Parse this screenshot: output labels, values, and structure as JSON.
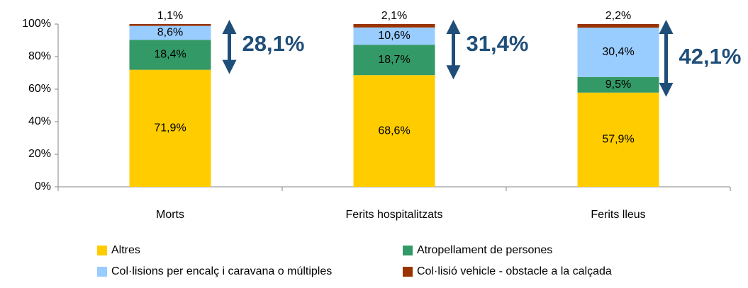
{
  "chart_data": {
    "type": "stacked_bar",
    "categories": [
      "Morts",
      "Ferits hospitalitzats",
      "Ferits lleus"
    ],
    "series": [
      {
        "name": "Altres",
        "color": "#ffcc00",
        "values": [
          71.9,
          68.6,
          57.9
        ],
        "value_labels": [
          "71,9%",
          "68,6%",
          "57,9%"
        ]
      },
      {
        "name": "Atropellament de persones",
        "color": "#339966",
        "values": [
          18.4,
          18.7,
          9.5
        ],
        "value_labels": [
          "18,4%",
          "18,7%",
          "9,5%"
        ]
      },
      {
        "name": "Col·lisions per encalç i caravana o múltiples",
        "color": "#99ccff",
        "values": [
          8.6,
          10.6,
          30.4
        ],
        "value_labels": [
          "8,6%",
          "10,6%",
          "30,4%"
        ]
      },
      {
        "name": "Col·lisió vehicle - obstacle a la calçada",
        "color": "#993300",
        "values": [
          1.1,
          2.1,
          2.2
        ],
        "value_labels": [
          "1,1%",
          "2,1%",
          "2,2%"
        ]
      }
    ],
    "ylim": [
      0,
      100
    ],
    "yticks": [
      {
        "value": 0,
        "label": "0%"
      },
      {
        "value": 20,
        "label": "20%"
      },
      {
        "value": 40,
        "label": "40%"
      },
      {
        "value": 60,
        "label": "60%"
      },
      {
        "value": 80,
        "label": "80%"
      },
      {
        "value": 100,
        "label": "100%"
      }
    ],
    "annotations": [
      {
        "value": 28.1,
        "label": "28,1%"
      },
      {
        "value": 31.4,
        "label": "31,4%"
      },
      {
        "value": 42.1,
        "label": "42,1%"
      }
    ],
    "annotation_color": "#1f4e79",
    "grid": false,
    "legend": "bottom"
  }
}
